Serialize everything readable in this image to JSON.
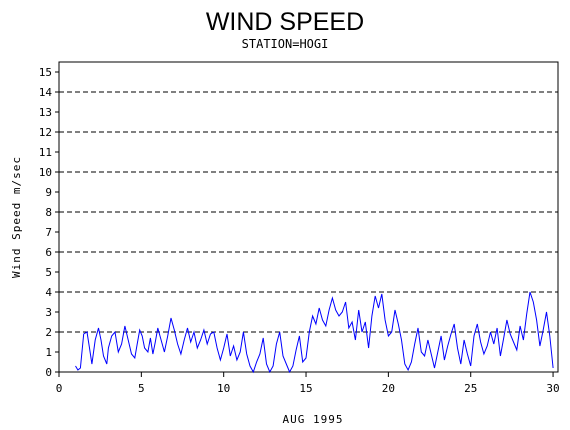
{
  "chart_data": {
    "type": "line",
    "title": "WIND SPEED",
    "subtitle": "STATION=HOGI",
    "xlabel": "AUG 1995",
    "ylabel": "Wind Speed m/sec",
    "xlim": [
      0,
      30.3
    ],
    "ylim": [
      0,
      15.5
    ],
    "x_ticks": [
      0,
      5,
      10,
      15,
      20,
      25,
      30
    ],
    "y_ticks": [
      0,
      1,
      2,
      3,
      4,
      5,
      6,
      7,
      8,
      9,
      10,
      11,
      12,
      13,
      14,
      15
    ],
    "reference_lines": [
      2,
      4,
      6,
      8,
      10,
      12,
      14
    ],
    "grid": "dashed horizontal at even values",
    "line_color": "#0000ff",
    "series": [
      {
        "x": [
          1.0,
          1.15,
          1.3,
          1.5,
          1.7,
          1.85,
          2.0,
          2.2,
          2.4,
          2.55,
          2.7,
          2.9,
          3.0,
          3.2,
          3.4,
          3.6,
          3.8,
          4.0,
          4.2,
          4.4,
          4.6,
          4.75,
          4.9,
          5.05,
          5.2,
          5.4,
          5.55,
          5.7,
          5.85,
          6.0,
          6.2,
          6.4,
          6.6,
          6.8,
          7.0,
          7.2,
          7.4,
          7.6,
          7.8,
          8.0,
          8.2,
          8.4,
          8.6,
          8.8,
          9.0,
          9.2,
          9.4,
          9.6,
          9.8,
          10.0,
          10.2,
          10.4,
          10.6,
          10.8,
          11.0,
          11.2,
          11.4,
          11.6,
          11.8,
          12.0,
          12.2,
          12.4,
          12.6,
          12.8,
          13.0,
          13.2,
          13.4,
          13.6,
          13.8,
          14.0,
          14.2,
          14.4,
          14.6,
          14.8,
          15.0,
          15.2,
          15.4,
          15.6,
          15.8,
          16.0,
          16.2,
          16.4,
          16.6,
          16.8,
          17.0,
          17.2,
          17.4,
          17.6,
          17.8,
          18.0,
          18.2,
          18.4,
          18.6,
          18.8,
          19.0,
          19.2,
          19.4,
          19.6,
          19.8,
          20.0,
          20.2,
          20.4,
          20.6,
          20.8,
          21.0,
          21.2,
          21.4,
          21.6,
          21.8,
          22.0,
          22.2,
          22.4,
          22.6,
          22.8,
          23.0,
          23.2,
          23.4,
          23.6,
          23.8,
          24.0,
          24.2,
          24.4,
          24.6,
          24.8,
          25.0,
          25.2,
          25.4,
          25.6,
          25.8,
          26.0,
          26.2,
          26.4,
          26.6,
          26.8,
          27.0,
          27.2,
          27.4,
          27.6,
          27.8,
          28.0,
          28.2,
          28.4,
          28.6,
          28.8,
          29.0,
          29.2,
          29.4,
          29.6,
          29.8,
          30.0
        ],
        "values": [
          0.3,
          0.1,
          0.2,
          1.9,
          2.0,
          1.2,
          0.4,
          1.6,
          2.2,
          1.6,
          0.8,
          0.4,
          1.2,
          1.8,
          2.0,
          1.0,
          1.4,
          2.3,
          1.6,
          0.9,
          0.7,
          1.4,
          2.1,
          1.8,
          1.2,
          1.0,
          1.7,
          0.9,
          1.5,
          2.2,
          1.6,
          1.0,
          1.8,
          2.7,
          2.1,
          1.4,
          0.9,
          1.6,
          2.2,
          1.5,
          2.0,
          1.2,
          1.6,
          2.1,
          1.4,
          1.9,
          2.0,
          1.2,
          0.6,
          1.2,
          1.9,
          0.8,
          1.3,
          0.6,
          1.0,
          2.0,
          0.9,
          0.3,
          0.0,
          0.5,
          0.9,
          1.7,
          0.4,
          0.0,
          0.3,
          1.4,
          2.0,
          0.8,
          0.4,
          0.0,
          0.3,
          1.1,
          1.8,
          0.5,
          0.7,
          2.0,
          2.8,
          2.4,
          3.2,
          2.6,
          2.3,
          3.1,
          3.7,
          3.1,
          2.8,
          3.0,
          3.5,
          2.2,
          2.5,
          1.6,
          3.1,
          2.0,
          2.5,
          1.2,
          2.8,
          3.8,
          3.2,
          3.9,
          2.6,
          1.8,
          2.0,
          3.1,
          2.4,
          1.6,
          0.4,
          0.1,
          0.5,
          1.4,
          2.2,
          1.0,
          0.8,
          1.6,
          0.9,
          0.2,
          1.0,
          1.8,
          0.6,
          1.3,
          1.9,
          2.4,
          1.2,
          0.4,
          1.6,
          0.9,
          0.3,
          1.8,
          2.4,
          1.5,
          0.9,
          1.3,
          2.0,
          1.4,
          2.2,
          0.8,
          1.7,
          2.6,
          1.9,
          1.5,
          1.1,
          2.3,
          1.6,
          2.9,
          4.0,
          3.5,
          2.6,
          1.3,
          2.1,
          3.0,
          1.8,
          0.2
        ]
      }
    ]
  }
}
